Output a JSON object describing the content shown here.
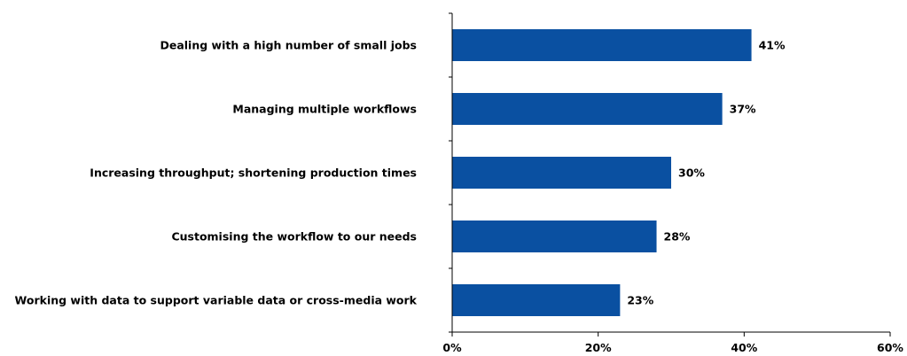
{
  "chart_data": {
    "type": "bar",
    "orientation": "horizontal",
    "categories": [
      "Dealing with a high number of small jobs",
      "Managing multiple workflows",
      "Increasing throughput; shortening production times",
      "Customising the workflow to our needs",
      "Working with data to support variable data or cross-media work"
    ],
    "values": [
      41,
      37,
      30,
      28,
      23
    ],
    "value_labels": [
      "41%",
      "37%",
      "30%",
      "28%",
      "23%"
    ],
    "x_ticks": [
      0,
      20,
      40,
      60
    ],
    "x_tick_labels": [
      "0%",
      "20%",
      "40%",
      "60%"
    ],
    "xlim": [
      0,
      60
    ],
    "bar_color": "#0A50A1",
    "grid": false,
    "legend": "none",
    "title": "",
    "xlabel": "",
    "ylabel": ""
  }
}
